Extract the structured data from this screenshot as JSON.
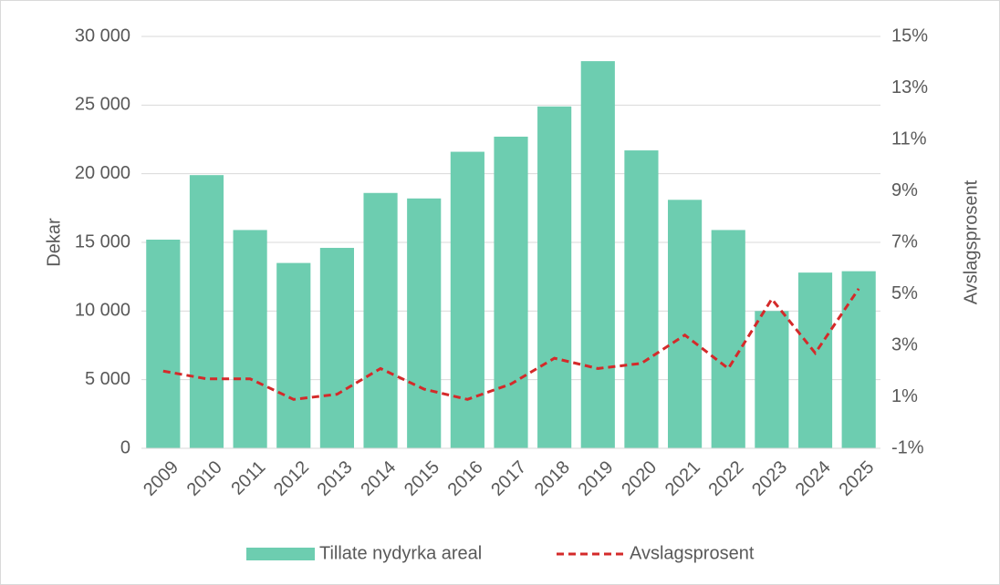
{
  "chart_data": {
    "type": "bar",
    "categories": [
      "2009",
      "2010",
      "2011",
      "2012",
      "2013",
      "2014",
      "2015",
      "2016",
      "2017",
      "2018",
      "2019",
      "2020",
      "2021",
      "2022",
      "2023",
      "2024",
      "2025"
    ],
    "series": [
      {
        "name": "Tillate nydyrka areal",
        "type": "bar",
        "color": "#6dcdb0",
        "values": [
          15200,
          19900,
          15900,
          13500,
          14600,
          18600,
          18200,
          21600,
          22700,
          24900,
          28200,
          21700,
          18100,
          15900,
          10000,
          12800,
          12900
        ]
      },
      {
        "name": "Avslagsprosent",
        "type": "line",
        "axis": "y2",
        "color": "#d42a2a",
        "values": [
          2.0,
          1.7,
          1.7,
          0.9,
          1.1,
          2.1,
          1.3,
          0.9,
          1.5,
          2.5,
          2.1,
          2.3,
          3.4,
          2.1,
          4.8,
          2.7,
          5.2
        ]
      }
    ],
    "ylabel": "Dekar",
    "y2label": "Avslagsprosent",
    "ylim": [
      0,
      30000
    ],
    "yticks": [
      0,
      {
        "value": 5000,
        "label": "5 000"
      },
      {
        "value": 10000,
        "label": "10 000"
      },
      {
        "value": 15000,
        "label": "15 000"
      },
      {
        "value": 20000,
        "label": "20 000"
      },
      {
        "value": 25000,
        "label": "25 000"
      },
      {
        "value": 30000,
        "label": "30 000"
      }
    ],
    "y2lim": [
      -1,
      15
    ],
    "y2ticks": [
      {
        "value": -1,
        "label": "-1%"
      },
      {
        "value": 1,
        "label": "1%"
      },
      {
        "value": 3,
        "label": "3%"
      },
      {
        "value": 5,
        "label": "5%"
      },
      {
        "value": 7,
        "label": "7%"
      },
      {
        "value": 9,
        "label": "9%"
      },
      {
        "value": 11,
        "label": "11%"
      },
      {
        "value": 13,
        "label": "13%"
      },
      {
        "value": 15,
        "label": "15%"
      }
    ],
    "grid": true,
    "legend": "bottom"
  }
}
